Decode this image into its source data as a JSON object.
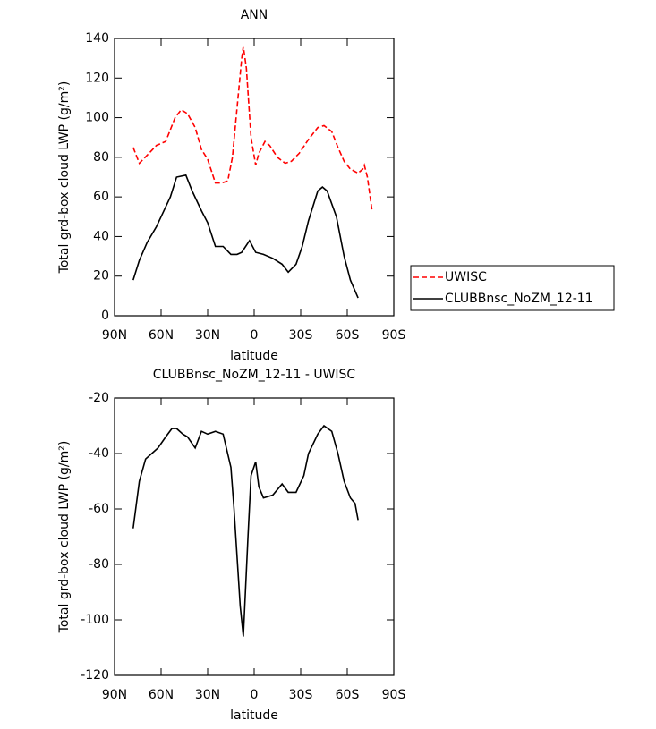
{
  "chart_data": [
    {
      "type": "line",
      "title": "ANN",
      "x_label": "latitude",
      "y_label": "Total grd-box cloud LWP (g/m²)",
      "xlim": [
        90,
        -90
      ],
      "xticks": [
        {
          "value": 90,
          "label": "90N"
        },
        {
          "value": 60,
          "label": "60N"
        },
        {
          "value": 30,
          "label": "30N"
        },
        0,
        {
          "value": -30,
          "label": "30S"
        },
        {
          "value": -60,
          "label": "60S"
        },
        {
          "value": -90,
          "label": "90S"
        }
      ],
      "ylim": [
        0,
        140
      ],
      "yticks": [
        0,
        20,
        40,
        60,
        80,
        100,
        120,
        140
      ],
      "legend": "right",
      "series": [
        {
          "name": "UWISC",
          "color": "#ff0000",
          "dash": true,
          "x": [
            78,
            74,
            69,
            63,
            57,
            51,
            47,
            43,
            38,
            34,
            30,
            25,
            21,
            17,
            14,
            11,
            8,
            7,
            5,
            2,
            -1,
            -3,
            -7,
            -10,
            -15,
            -20,
            -24,
            -29,
            -35,
            -41,
            -45,
            -50,
            -54,
            -58,
            -62,
            -67,
            -70,
            -71,
            -73,
            -76
          ],
          "values": [
            85,
            77,
            81,
            86,
            88,
            100,
            104,
            102,
            95,
            84,
            79,
            67,
            67,
            68,
            80,
            105,
            130,
            136,
            125,
            90,
            76,
            82,
            88,
            86,
            80,
            77,
            78,
            82,
            89,
            95,
            96,
            93,
            85,
            78,
            74,
            72,
            74,
            76,
            70,
            53
          ]
        },
        {
          "name": "CLUBBnsc_NoZM_12-11",
          "color": "#000000",
          "dash": false,
          "x": [
            78,
            74,
            69,
            63,
            60,
            54,
            50,
            44,
            40,
            34,
            30,
            25,
            20,
            15,
            11,
            8,
            3,
            -1,
            -6,
            -12,
            -18,
            -22,
            -27,
            -31,
            -35,
            -41,
            -44,
            -47,
            -53,
            -58,
            -62,
            -67
          ],
          "values": [
            18,
            28,
            37,
            45,
            50,
            60,
            70,
            71,
            63,
            53,
            47,
            35,
            35,
            31,
            31,
            32,
            38,
            32,
            31,
            29,
            26,
            22,
            26,
            35,
            48,
            63,
            65,
            63,
            50,
            30,
            18,
            9
          ]
        }
      ]
    },
    {
      "type": "line",
      "title": "CLUBBnsc_NoZM_12-11 - UWISC",
      "x_label": "latitude",
      "y_label": "Total grd-box cloud LWP (g/m²)",
      "xlim": [
        90,
        -90
      ],
      "xticks": [
        {
          "value": 90,
          "label": "90N"
        },
        {
          "value": 60,
          "label": "60N"
        },
        {
          "value": 30,
          "label": "30N"
        },
        0,
        {
          "value": -30,
          "label": "30S"
        },
        {
          "value": -60,
          "label": "60S"
        },
        {
          "value": -90,
          "label": "90S"
        }
      ],
      "ylim": [
        -120,
        -20
      ],
      "yticks": [
        -120,
        -100,
        -80,
        -60,
        -40,
        -20
      ],
      "series": [
        {
          "color": "#000000",
          "dash": false,
          "x": [
            78,
            74,
            70,
            66,
            62,
            57,
            53,
            50,
            46,
            43,
            38,
            34,
            30,
            25,
            20,
            15,
            13,
            9,
            7,
            4,
            2,
            -1,
            -3,
            -6,
            -12,
            -18,
            -22,
            -27,
            -32,
            -35,
            -41,
            -45,
            -50,
            -54,
            -58,
            -62,
            -65,
            -67
          ],
          "values": [
            -67,
            -50,
            -42,
            -40,
            -38,
            -34,
            -31,
            -31,
            -33,
            -34,
            -38,
            -32,
            -33,
            -32,
            -33,
            -45,
            -60,
            -95,
            -106,
            -70,
            -48,
            -43,
            -52,
            -56,
            -55,
            -51,
            -54,
            -54,
            -48,
            -40,
            -33,
            -30,
            -32,
            -40,
            -50,
            -56,
            -58,
            -64
          ]
        }
      ]
    }
  ]
}
